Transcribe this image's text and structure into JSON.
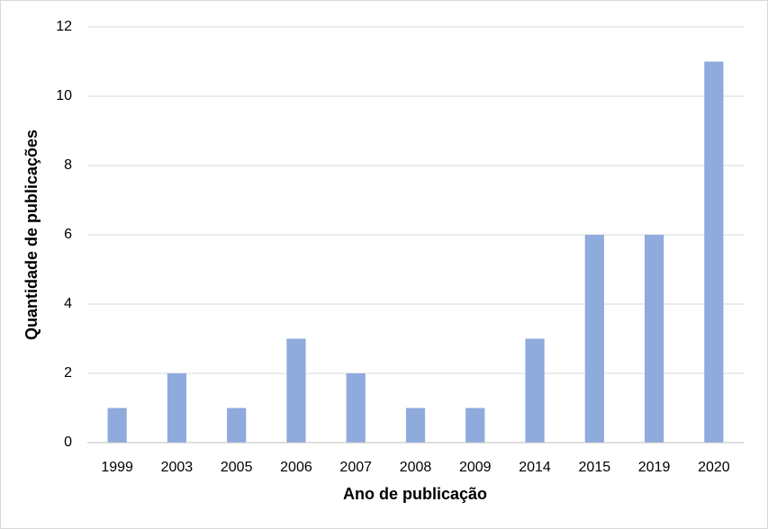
{
  "chart_data": {
    "type": "bar",
    "categories": [
      "1999",
      "2003",
      "2005",
      "2006",
      "2007",
      "2008",
      "2009",
      "2014",
      "2015",
      "2019",
      "2020"
    ],
    "values": [
      1,
      2,
      1,
      3,
      2,
      1,
      1,
      3,
      6,
      6,
      11
    ],
    "color": "#8faadc",
    "x_label": "Ano de publicação",
    "y_label": "Quantidade de publicações",
    "ylim": [
      0,
      12
    ],
    "yticks": [
      0,
      2,
      4,
      6,
      8,
      10,
      12
    ],
    "grid": true
  }
}
